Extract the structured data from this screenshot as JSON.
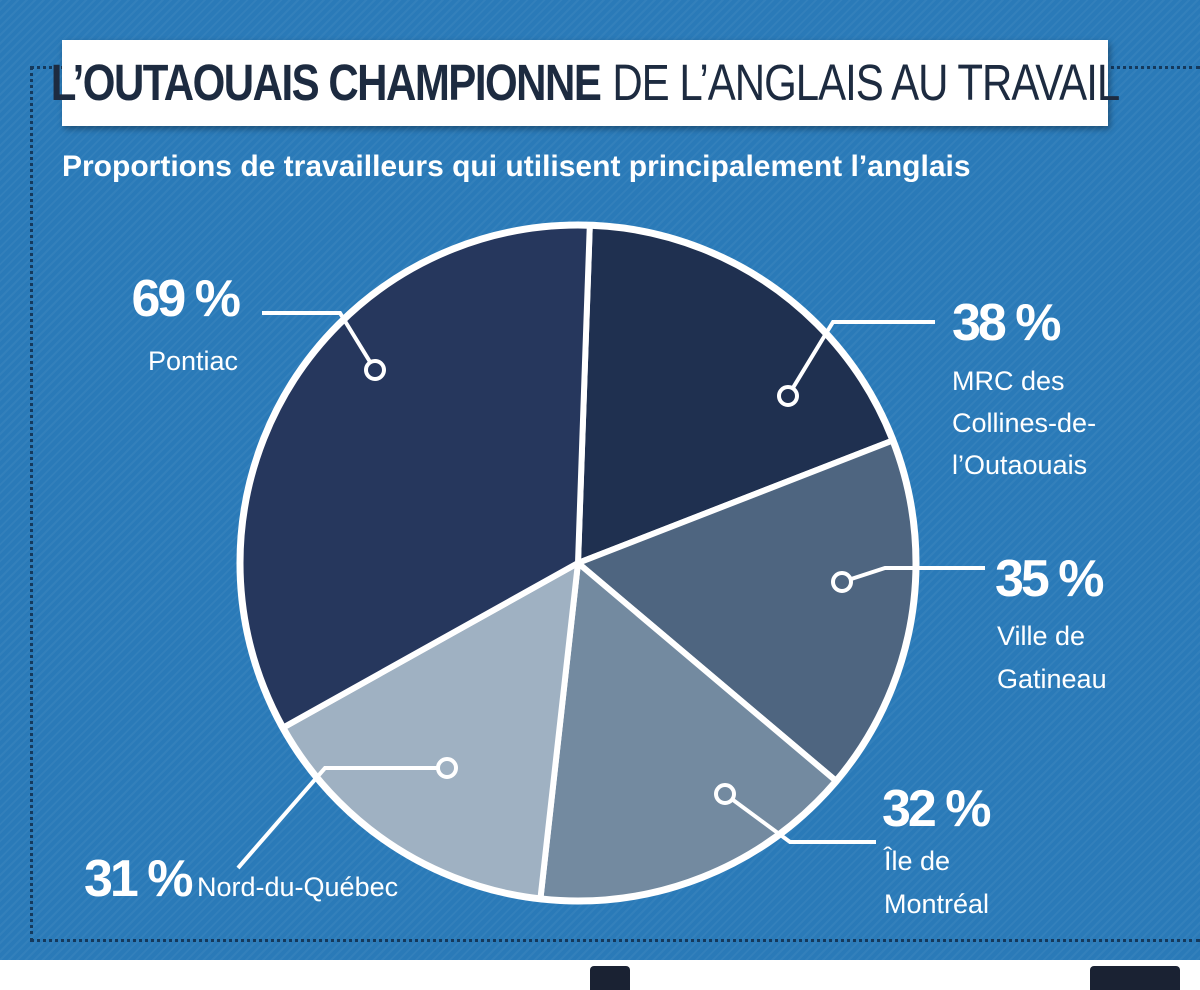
{
  "title": {
    "bold": "L’OUTAOUAIS CHAMPIONNE",
    "rest": "DE L’ANGLAIS AU TRAVAIL"
  },
  "subtitle": "Proportions de travailleurs qui utilisent principalement l’anglais",
  "chart_data": {
    "type": "pie",
    "title": "L’OUTAOUAIS CHAMPIONNE DE L’ANGLAIS AU TRAVAIL",
    "subtitle": "Proportions de travailleurs qui utilisent principalement l’anglais",
    "slices": [
      {
        "name": "MRC des Collines-de-l’Outaouais",
        "lines": [
          "MRC des",
          "Collines-de-",
          "l’Outaouais"
        ],
        "value": 38,
        "label": "38 %",
        "color": "#1f3050"
      },
      {
        "name": "Ville de Gatineau",
        "lines": [
          "Ville de",
          "Gatineau"
        ],
        "value": 35,
        "label": "35 %",
        "color": "#4e6580"
      },
      {
        "name": "Île de Montréal",
        "lines": [
          "Île de",
          "Montréal"
        ],
        "value": 32,
        "label": "32 %",
        "color": "#738aa0"
      },
      {
        "name": "Nord-du-Québec",
        "lines": [
          "Nord-du-Québec"
        ],
        "value": 31,
        "label": "31 %",
        "color": "#9fb1c2"
      },
      {
        "name": "Pontiac",
        "lines": [
          "Pontiac"
        ],
        "value": 69,
        "label": "69 %",
        "color": "#26375d"
      }
    ],
    "outline_color": "#ffffff"
  }
}
